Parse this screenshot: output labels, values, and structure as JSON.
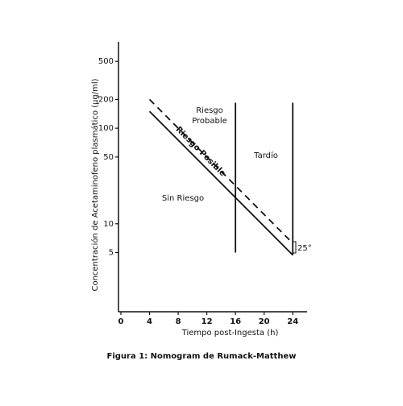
{
  "chart_data": {
    "type": "line",
    "title": "Figura 1: Nomogram de Rumack-Matthew",
    "x_label": "Tiempo post-Ingesta (h)",
    "y_label": "Concentración de Acetaminofeno plasmático (µg/ml)",
    "y_scale": "log",
    "xlim": [
      0,
      26
    ],
    "ylim": [
      1.2,
      800
    ],
    "xticks": [
      0,
      4,
      8,
      12,
      16,
      20,
      24
    ],
    "yticks": [
      5,
      10,
      50,
      100,
      200,
      500
    ],
    "series": [
      {
        "x": [
          4,
          24
        ],
        "values": [
          150,
          4.7
        ],
        "color": "#111111",
        "dash": false
      },
      {
        "x": [
          4,
          24
        ],
        "values": [
          200,
          6.25
        ],
        "color": "#111111",
        "dash": true
      }
    ],
    "reference_lines": [
      {
        "x": [
          16,
          16
        ],
        "values": [
          185,
          5
        ]
      },
      {
        "x": [
          24,
          24
        ],
        "values": [
          185,
          4.7
        ]
      }
    ],
    "annotations": {
      "probable": [
        "Riesgo",
        "Probable"
      ],
      "late": "Tardío",
      "no_risk": "Sin Riesgo",
      "possible": "Riesgo Posible",
      "angle": "25°"
    }
  }
}
